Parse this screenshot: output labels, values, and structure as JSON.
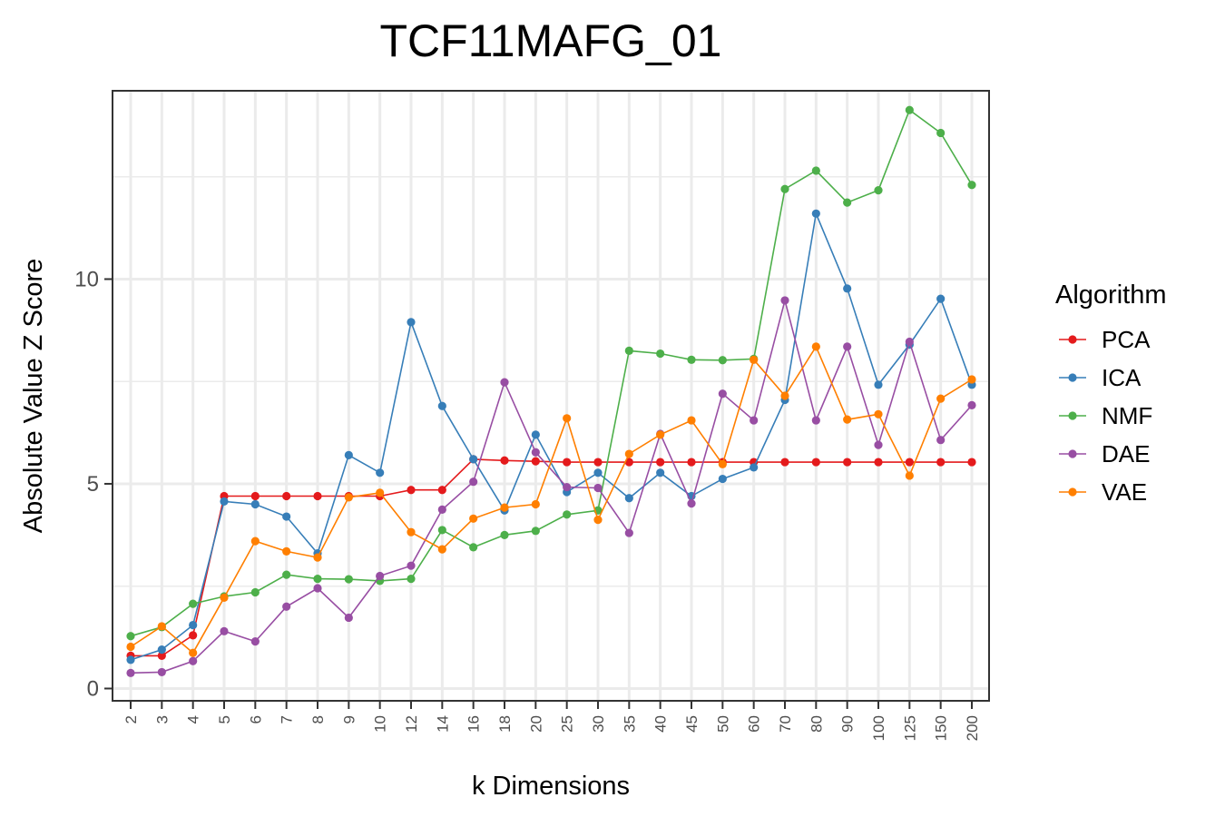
{
  "chart_data": {
    "type": "line",
    "title": "TCF11MAFG_01",
    "xlabel": "k Dimensions",
    "ylabel": "Absolute Value Z Score",
    "categories": [
      "2",
      "3",
      "4",
      "5",
      "6",
      "7",
      "8",
      "9",
      "10",
      "12",
      "14",
      "16",
      "18",
      "20",
      "25",
      "30",
      "35",
      "40",
      "45",
      "50",
      "60",
      "70",
      "80",
      "90",
      "100",
      "125",
      "150",
      "200"
    ],
    "yticks": [
      0,
      5,
      10
    ],
    "ylim": [
      -0.3,
      14.6
    ],
    "grid": true,
    "legend": {
      "title": "Algorithm",
      "position": "right"
    },
    "series": [
      {
        "name": "PCA",
        "color": "#e41a1c",
        "values": [
          0.8,
          0.8,
          1.3,
          4.7,
          4.7,
          4.7,
          4.7,
          4.7,
          4.7,
          4.85,
          4.85,
          5.6,
          5.57,
          5.55,
          5.53,
          5.53,
          5.53,
          5.53,
          5.53,
          5.53,
          5.53,
          5.53,
          5.53,
          5.53,
          5.53,
          5.53,
          5.53,
          5.53
        ]
      },
      {
        "name": "ICA",
        "color": "#377eb8",
        "values": [
          0.7,
          0.95,
          1.55,
          4.57,
          4.5,
          4.2,
          3.3,
          5.7,
          5.27,
          8.95,
          6.9,
          5.6,
          4.35,
          6.2,
          4.8,
          5.27,
          4.65,
          5.27,
          4.7,
          5.12,
          5.4,
          7.05,
          11.6,
          9.77,
          7.42,
          8.4,
          9.52,
          7.42
        ]
      },
      {
        "name": "NMF",
        "color": "#4daf4a",
        "values": [
          1.28,
          1.5,
          2.07,
          2.25,
          2.35,
          2.78,
          2.68,
          2.67,
          2.63,
          2.68,
          3.87,
          3.45,
          3.75,
          3.85,
          4.25,
          4.35,
          8.25,
          8.18,
          8.03,
          8.02,
          8.05,
          12.2,
          12.65,
          11.87,
          12.17,
          14.13,
          13.57,
          12.3
        ]
      },
      {
        "name": "DAE",
        "color": "#984ea3",
        "values": [
          0.38,
          0.4,
          0.67,
          1.4,
          1.15,
          2.0,
          2.45,
          1.73,
          2.75,
          3.0,
          4.37,
          5.05,
          7.48,
          5.77,
          4.92,
          4.9,
          3.8,
          6.22,
          4.52,
          7.2,
          6.55,
          9.48,
          6.55,
          8.35,
          5.95,
          8.47,
          6.07,
          6.92
        ]
      },
      {
        "name": "VAE",
        "color": "#ff7f00",
        "values": [
          1.02,
          1.52,
          0.87,
          2.22,
          3.6,
          3.35,
          3.2,
          4.67,
          4.78,
          3.82,
          3.4,
          4.15,
          4.42,
          4.5,
          6.6,
          4.12,
          5.73,
          6.2,
          6.55,
          5.48,
          8.03,
          7.15,
          8.35,
          6.57,
          6.7,
          5.2,
          7.08,
          7.55
        ]
      }
    ]
  }
}
